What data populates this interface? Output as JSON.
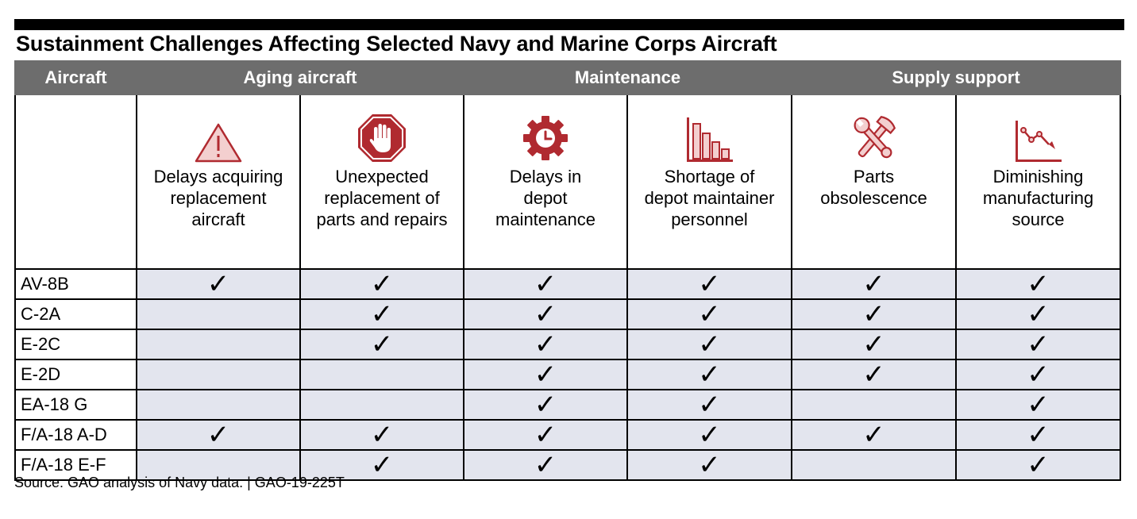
{
  "title": "Sustainment Challenges Affecting Selected Navy and Marine Corps Aircraft",
  "header": {
    "aircraft": "Aircraft",
    "groups": [
      "Aging aircraft",
      "Maintenance",
      "Supply support"
    ]
  },
  "accent_color": "#b02a30",
  "challenges": [
    {
      "label": "Delays acquiring\nreplacement\naircraft",
      "icon": "warning-triangle-icon"
    },
    {
      "label": "Unexpected\nreplacement of\nparts and repairs",
      "icon": "stop-hand-icon"
    },
    {
      "label": "Delays in\ndepot\nmaintenance",
      "icon": "gear-clock-icon"
    },
    {
      "label": "Shortage of\ndepot maintainer\npersonnel",
      "icon": "declining-bars-icon"
    },
    {
      "label": "Parts\nobsolescence",
      "icon": "wrench-hammer-icon"
    },
    {
      "label": "Diminishing\nmanufacturing\nsource",
      "icon": "declining-line-icon"
    }
  ],
  "check_mark": "✓",
  "rows": [
    {
      "name": "AV-8B",
      "checks": [
        true,
        true,
        true,
        true,
        true,
        true
      ]
    },
    {
      "name": "C-2A",
      "checks": [
        false,
        true,
        true,
        true,
        true,
        true
      ]
    },
    {
      "name": "E-2C",
      "checks": [
        false,
        true,
        true,
        true,
        true,
        true
      ]
    },
    {
      "name": "E-2D",
      "checks": [
        false,
        false,
        true,
        true,
        true,
        true
      ]
    },
    {
      "name": "EA-18 G",
      "checks": [
        false,
        false,
        true,
        true,
        false,
        true
      ]
    },
    {
      "name": "F/A-18 A-D",
      "checks": [
        true,
        true,
        true,
        true,
        true,
        true
      ]
    },
    {
      "name": "F/A-18 E-F",
      "checks": [
        false,
        true,
        true,
        true,
        false,
        true
      ]
    }
  ],
  "source": "Source: GAO analysis of Navy data.  |  GAO-19-225T"
}
